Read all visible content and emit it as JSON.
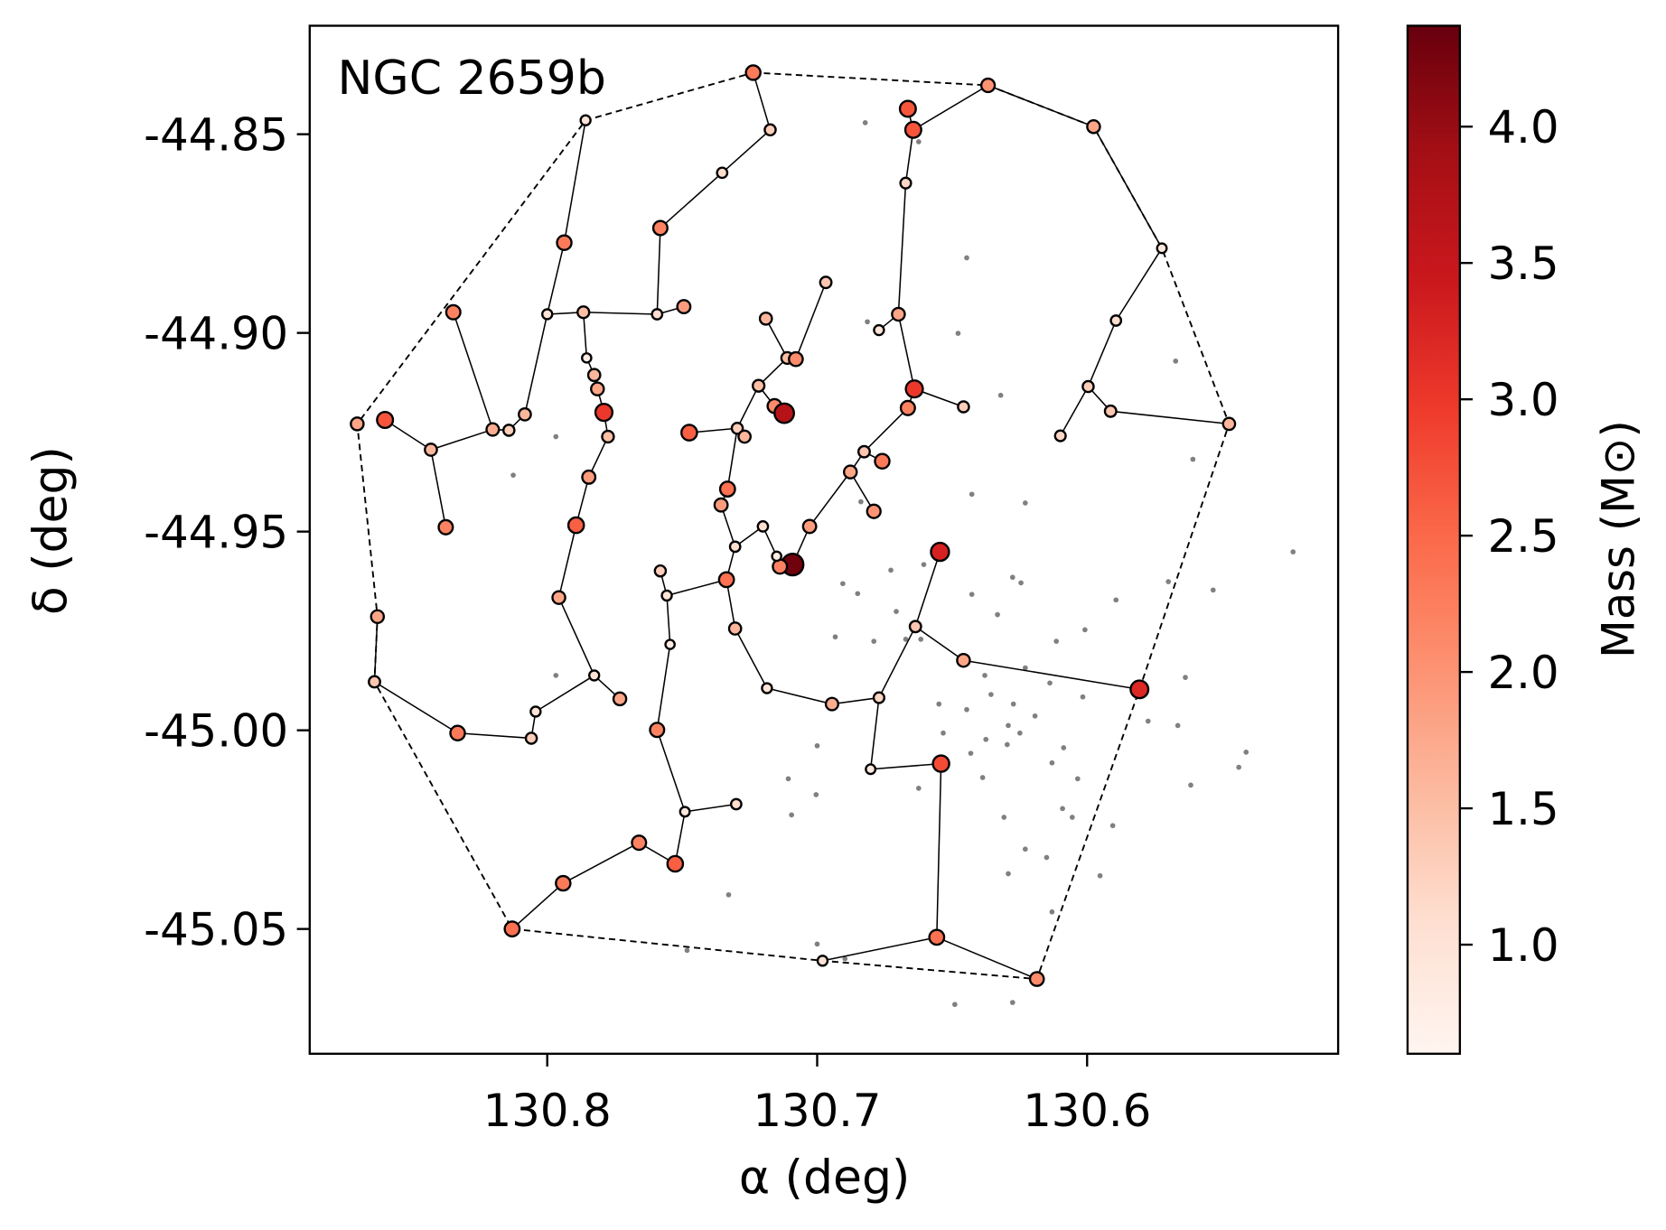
{
  "chart_data": {
    "type": "scatter",
    "annotation": "NGC 2659b",
    "xlabel": "α (deg)",
    "ylabel": "δ (deg)",
    "xlim": [
      130.888,
      130.507
    ],
    "ylim": [
      -45.0814,
      -44.8227
    ],
    "xticks": [
      130.8,
      130.7,
      130.6
    ],
    "yticks": [
      -44.85,
      {
        "value": -44.9,
        "label": "-44.90"
      },
      -44.95,
      {
        "value": -45.0,
        "label": "-45.00"
      },
      -45.05
    ],
    "members": {
      "x": [
        130.7237,
        130.7174,
        130.7352,
        130.7581,
        130.7593,
        130.7494,
        130.7858,
        130.7937,
        130.8,
        130.7866,
        130.7854,
        130.7826,
        130.7814,
        130.779,
        130.7775,
        130.7846,
        130.7893,
        130.7957,
        130.7826,
        130.7731,
        130.7593,
        130.749,
        130.73,
        130.7526,
        130.766,
        130.7941,
        130.813,
        130.8043,
        130.8059,
        130.8332,
        130.864,
        130.8629,
        130.8704,
        130.8601,
        130.8431,
        130.8376,
        130.8348,
        130.8202,
        130.8142,
        130.8083,
        130.7545,
        130.7557,
        130.7581,
        130.7336,
        130.7304,
        130.7186,
        130.6945,
        130.6771,
        130.6802,
        130.6541,
        130.6557,
        130.698,
        130.6186,
        130.5806,
        130.6458,
        130.6636,
        130.6545,
        130.7028,
        130.7091,
        130.7138,
        130.715,
        130.7201,
        130.7304,
        130.7356,
        130.7332,
        130.7296,
        130.7269,
        130.7474,
        130.7217,
        130.7158,
        130.7122,
        130.719,
        130.7111,
        130.7079,
        130.6968,
        130.6826,
        130.6877,
        130.679,
        130.6759,
        130.6771,
        130.6699,
        130.6672,
        130.6664,
        130.6644,
        130.664,
        130.6664,
        130.6458,
        130.6367,
        130.5976,
        130.5723,
        130.5893,
        130.5996,
        130.5913,
        130.6099,
        130.5474
      ],
      "y": [
        -44.8345,
        -44.8489,
        -44.8597,
        -44.8736,
        -44.8953,
        -44.8934,
        -44.8465,
        -44.8773,
        -44.8953,
        -44.8948,
        -44.9063,
        -44.9106,
        -44.9141,
        -44.92,
        -44.9261,
        -44.9363,
        -44.9484,
        -44.9666,
        -44.9862,
        -44.9921,
        -44.9999,
        -45.0205,
        -45.0186,
        -45.0336,
        -45.0283,
        -45.0385,
        -45.05,
        -44.9953,
        -45.002,
        -45.0007,
        -44.9878,
        -44.9714,
        -44.9229,
        -44.9219,
        -44.9294,
        -44.9489,
        -44.8948,
        -44.9243,
        -44.9245,
        -44.9205,
        -44.9784,
        -44.9661,
        -44.9599,
        -44.9621,
        -44.9744,
        -44.9894,
        -44.9934,
        -44.9918,
        -45.0098,
        -45.0084,
        -45.0521,
        -45.058,
        -45.0626,
        -44.9897,
        -44.9824,
        -44.9739,
        -44.9551,
        -44.9487,
        -44.9583,
        -44.9588,
        -44.9562,
        -44.9487,
        -44.9538,
        -44.9433,
        -44.9393,
        -44.924,
        -44.9261,
        -44.9251,
        -44.9133,
        -44.9184,
        -44.9202,
        -44.8964,
        -44.9063,
        -44.9066,
        -44.8873,
        -44.9299,
        -44.935,
        -44.9449,
        -44.9323,
        -44.8993,
        -44.8953,
        -44.8623,
        -44.8436,
        -44.8489,
        -44.9141,
        -44.9189,
        -44.9186,
        -44.8377,
        -44.8481,
        -44.8787,
        -44.8969,
        -44.9135,
        -44.9197,
        -44.9259,
        -44.9229
      ],
      "mass": [
        2.3,
        1.3,
        1.1,
        2.2,
        1.1,
        1.9,
        1.0,
        2.3,
        1.0,
        1.5,
        0.8,
        1.6,
        1.8,
        3.0,
        1.5,
        1.9,
        2.6,
        1.8,
        1.0,
        1.8,
        2.2,
        0.9,
        1.1,
        2.6,
        2.2,
        2.3,
        2.4,
        1.0,
        1.3,
        2.3,
        1.4,
        1.8,
        1.8,
        2.7,
        1.6,
        2.2,
        2.2,
        1.7,
        1.3,
        1.6,
        0.8,
        1.0,
        1.3,
        2.4,
        1.6,
        1.0,
        1.7,
        1.2,
        0.9,
        2.8,
        2.4,
        1.0,
        2.1,
        3.2,
        1.8,
        1.4,
        3.3,
        1.9,
        4.3,
        2.2,
        0.8,
        1.1,
        1.1,
        1.9,
        2.4,
        1.3,
        1.6,
        2.6,
        1.5,
        2.1,
        3.7,
        1.6,
        1.5,
        2.1,
        1.4,
        1.4,
        1.8,
        2.0,
        2.3,
        1.0,
        1.8,
        1.2,
        2.7,
        2.7,
        3.0,
        2.2,
        1.3,
        2.0,
        1.8,
        0.9,
        1.1,
        1.3,
        1.4,
        1.2,
        1.6
      ]
    },
    "mst_edges": [
      [
        0,
        1
      ],
      [
        1,
        2
      ],
      [
        2,
        3
      ],
      [
        3,
        4
      ],
      [
        4,
        5
      ],
      [
        4,
        9
      ],
      [
        9,
        8
      ],
      [
        8,
        7
      ],
      [
        7,
        6
      ],
      [
        9,
        10
      ],
      [
        10,
        11
      ],
      [
        11,
        12
      ],
      [
        12,
        13
      ],
      [
        13,
        14
      ],
      [
        14,
        15
      ],
      [
        15,
        16
      ],
      [
        16,
        17
      ],
      [
        17,
        18
      ],
      [
        18,
        19
      ],
      [
        18,
        27
      ],
      [
        27,
        28
      ],
      [
        28,
        29
      ],
      [
        29,
        30
      ],
      [
        30,
        31
      ],
      [
        33,
        34
      ],
      [
        34,
        35
      ],
      [
        34,
        37
      ],
      [
        37,
        36
      ],
      [
        37,
        38
      ],
      [
        38,
        39
      ],
      [
        39,
        8
      ],
      [
        40,
        20
      ],
      [
        20,
        21
      ],
      [
        21,
        22
      ],
      [
        21,
        23
      ],
      [
        23,
        24
      ],
      [
        24,
        25
      ],
      [
        25,
        26
      ],
      [
        40,
        41
      ],
      [
        41,
        42
      ],
      [
        41,
        43
      ],
      [
        43,
        62
      ],
      [
        43,
        44
      ],
      [
        44,
        45
      ],
      [
        45,
        46
      ],
      [
        46,
        47
      ],
      [
        47,
        48
      ],
      [
        48,
        49
      ],
      [
        49,
        50
      ],
      [
        50,
        51
      ],
      [
        50,
        52
      ],
      [
        47,
        55
      ],
      [
        55,
        54
      ],
      [
        54,
        53
      ],
      [
        55,
        56
      ],
      [
        62,
        63
      ],
      [
        62,
        61
      ],
      [
        61,
        60
      ],
      [
        60,
        59
      ],
      [
        59,
        58
      ],
      [
        58,
        57
      ],
      [
        57,
        76
      ],
      [
        76,
        75
      ],
      [
        76,
        77
      ],
      [
        75,
        78
      ],
      [
        75,
        85
      ],
      [
        85,
        84
      ],
      [
        84,
        86
      ],
      [
        84,
        80
      ],
      [
        80,
        79
      ],
      [
        80,
        81
      ],
      [
        81,
        83
      ],
      [
        83,
        82
      ],
      [
        83,
        87
      ],
      [
        87,
        88
      ],
      [
        88,
        89
      ],
      [
        89,
        90
      ],
      [
        90,
        91
      ],
      [
        91,
        93
      ],
      [
        91,
        92
      ],
      [
        92,
        94
      ],
      [
        63,
        64
      ],
      [
        64,
        65
      ],
      [
        65,
        66
      ],
      [
        65,
        67
      ],
      [
        65,
        68
      ],
      [
        68,
        69
      ],
      [
        69,
        70
      ],
      [
        68,
        72
      ],
      [
        72,
        73
      ],
      [
        72,
        71
      ],
      [
        73,
        74
      ]
    ],
    "hull": [
      0,
      87,
      88,
      89,
      94,
      53,
      52,
      51,
      26,
      30,
      31,
      32,
      6
    ],
    "field": {
      "color": "#808080",
      "x": [
        130.6822,
        130.6624,
        130.6446,
        130.6814,
        130.6478,
        130.5672,
        130.632,
        130.7968,
        130.8126,
        130.5608,
        130.6427,
        130.6229,
        130.6838,
        130.5237,
        130.6605,
        130.6905,
        130.6727,
        130.685,
        130.6276,
        130.6245,
        130.5699,
        130.5533,
        130.5893,
        130.6427,
        130.6332,
        130.6707,
        130.6616,
        130.679,
        130.6672,
        130.6933,
        130.6008,
        130.6114,
        130.6379,
        130.6229,
        130.6016,
        130.5636,
        130.7968,
        130.6138,
        130.6356,
        130.6273,
        130.6193,
        130.6549,
        130.6446,
        130.6292,
        130.6533,
        130.6375,
        130.6249,
        130.6087,
        130.5774,
        130.5664,
        130.6431,
        130.6296,
        130.5438,
        130.5411,
        130.613,
        130.6035,
        130.5616,
        130.7,
        130.7107,
        130.7004,
        130.6624,
        130.6091,
        130.6308,
        130.6055,
        130.5905,
        130.7095,
        130.6229,
        130.615,
        130.5952,
        130.6292,
        130.7328,
        130.7482,
        130.7,
        130.6897,
        130.613,
        130.649,
        130.6276,
        130.6387
      ],
      "y": [
        -44.8471,
        -44.8519,
        -44.8811,
        -44.8972,
        -44.9001,
        -44.9071,
        -44.9157,
        -44.9261,
        -44.9358,
        -44.9318,
        -44.9406,
        -44.9428,
        -44.9425,
        -44.9551,
        -44.9583,
        -44.9631,
        -44.9597,
        -44.9656,
        -44.9615,
        -44.9629,
        -44.9626,
        -44.9647,
        -44.9672,
        -44.9658,
        -44.9709,
        -44.9701,
        -44.9771,
        -44.9776,
        -44.9771,
        -44.9765,
        -44.9747,
        -44.9776,
        -44.9862,
        -44.9843,
        -44.9916,
        -44.9867,
        -44.9862,
        -44.9881,
        -44.991,
        -44.9934,
        -44.9964,
        -44.9934,
        -44.9948,
        -44.9988,
        -45.0007,
        -45.0023,
        -45.0007,
        -45.0044,
        -44.9977,
        -44.9988,
        -45.0058,
        -45.0036,
        -45.0093,
        -45.0055,
        -45.0082,
        -45.0122,
        -45.0138,
        -45.0039,
        -45.0122,
        -45.0162,
        -45.0146,
        -45.0197,
        -45.0219,
        -45.0219,
        -45.024,
        -45.0213,
        -45.0299,
        -45.032,
        -45.0366,
        -45.0361,
        -45.0414,
        -45.0554,
        -45.0538,
        -45.0575,
        -45.0457,
        -45.069,
        -45.0685,
        -45.0119
      ]
    },
    "colorbar": {
      "label": "Mass (M⊙)",
      "colormap": "Reds",
      "lim": [
        0.6,
        4.37
      ],
      "ticks": [
        {
          "value": 1.0,
          "label": "1.0"
        },
        1.5,
        {
          "value": 2.0,
          "label": "2.0"
        },
        2.5,
        {
          "value": 3.0,
          "label": "3.0"
        },
        3.5,
        {
          "value": 4.0,
          "label": "4.0"
        }
      ]
    }
  }
}
